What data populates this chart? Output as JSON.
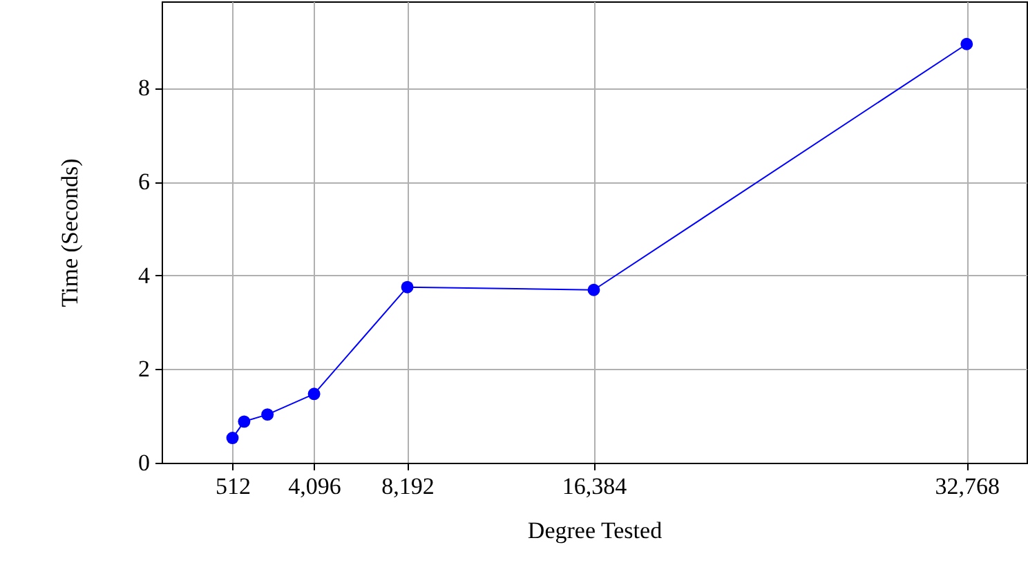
{
  "chart_data": {
    "type": "line",
    "xlabel": "Degree Tested",
    "ylabel": "Time (Seconds)",
    "x": [
      512,
      1024,
      2048,
      4096,
      8192,
      16384,
      32768
    ],
    "series": [
      {
        "color": "#0000ff",
        "values": [
          0.53,
          0.88,
          1.03,
          1.47,
          3.75,
          3.69,
          8.94
        ]
      }
    ],
    "xlim": [
      -2600,
      35400
    ],
    "xticks": [
      {
        "value": 512,
        "label": "512"
      },
      {
        "value": 4096,
        "label": "4,096"
      },
      {
        "value": 8192,
        "label": "8,192"
      },
      {
        "value": 16384,
        "label": "16,384"
      },
      {
        "value": 32768,
        "label": "32,768"
      }
    ],
    "ylim": [
      0,
      9.85
    ],
    "yticks": [
      0,
      2,
      4,
      6,
      8
    ],
    "grid": true,
    "marker": "circle",
    "line_style": "solid"
  }
}
